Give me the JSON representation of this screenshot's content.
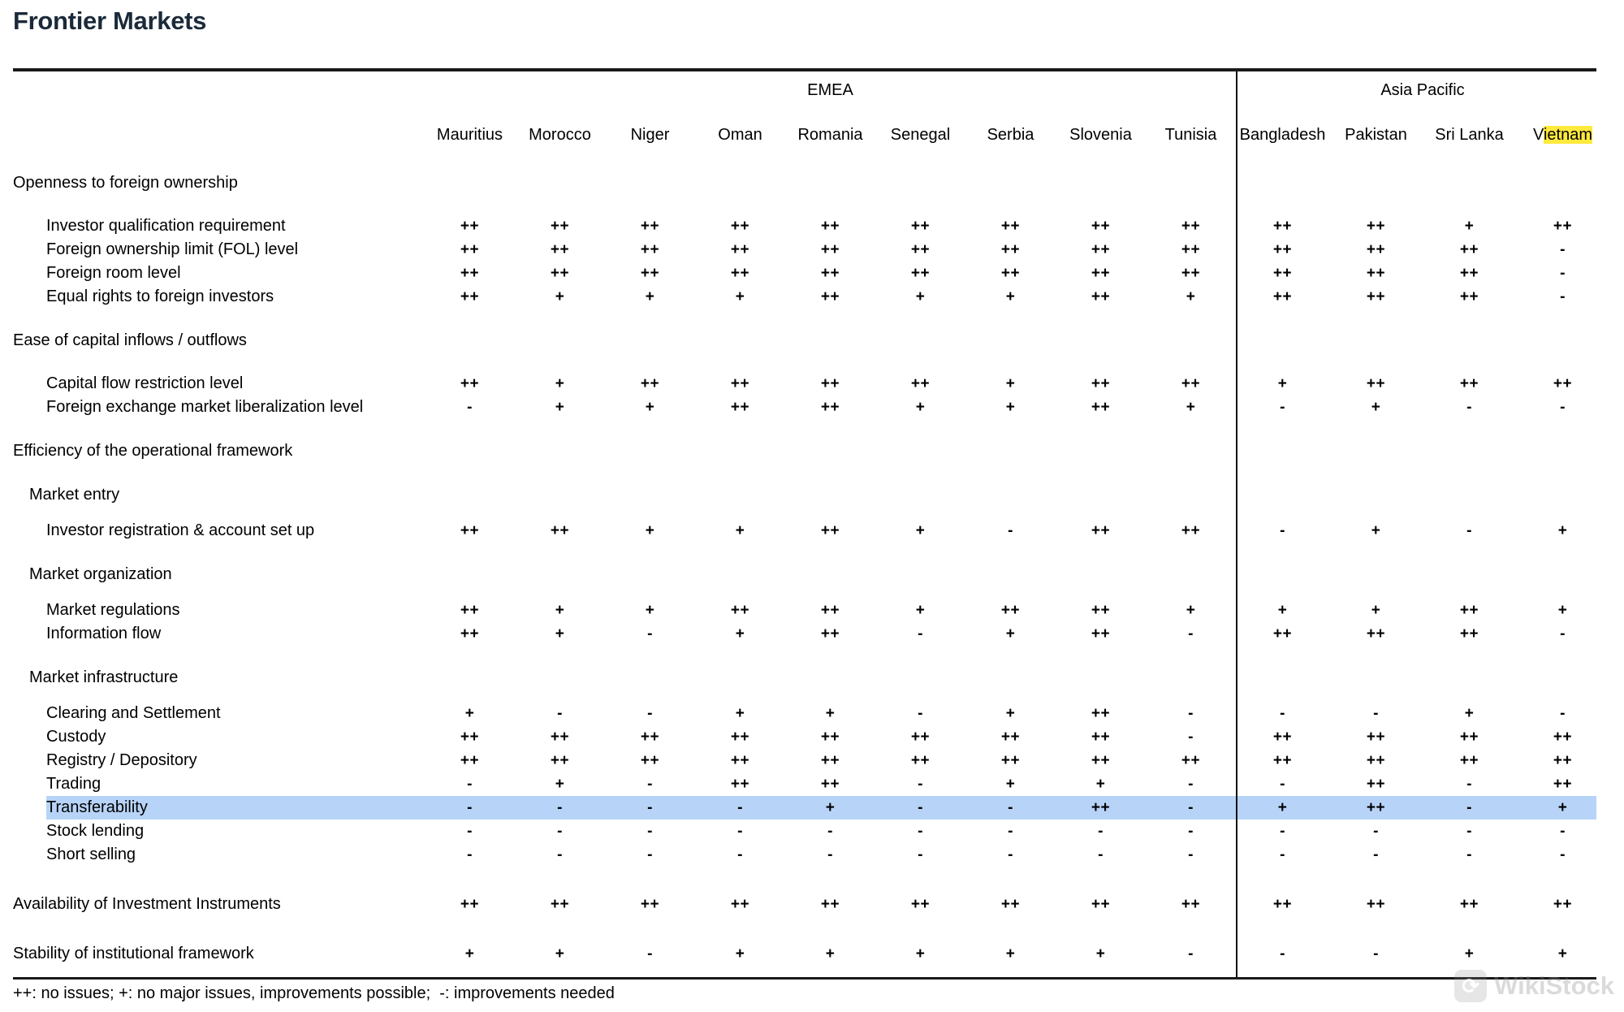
{
  "title": "Frontier Markets",
  "legend": "++: no issues; +: no major issues, improvements possible;  -: improvements needed",
  "watermark": "WikiStock",
  "colors": {
    "title": "#1b2a3a",
    "row_highlight_blue": "#b7d3f8",
    "country_highlight_yellow": "#ffe93c",
    "table_line": "#1a1a1a",
    "watermark_gray": "#8c8c8c"
  },
  "groups": [
    {
      "name": "EMEA",
      "countries": [
        "Mauritius",
        "Morocco",
        "Niger",
        "Oman",
        "Romania",
        "Senegal",
        "Serbia",
        "Slovenia",
        "Tunisia"
      ]
    },
    {
      "name": "Asia Pacific",
      "countries": [
        "Bangladesh",
        "Pakistan",
        "Sri Lanka",
        "Vietnam"
      ]
    }
  ],
  "highlighted_country": "Vietnam",
  "rows": [
    {
      "type": "section",
      "label": "Openness to foreign ownership"
    },
    {
      "type": "data",
      "label": "Investor qualification requirement",
      "values": [
        "++",
        "++",
        "++",
        "++",
        "++",
        "++",
        "++",
        "++",
        "++",
        "++",
        "++",
        "+",
        "++"
      ]
    },
    {
      "type": "data",
      "label": "Foreign ownership limit (FOL) level",
      "values": [
        "++",
        "++",
        "++",
        "++",
        "++",
        "++",
        "++",
        "++",
        "++",
        "++",
        "++",
        "++",
        "-"
      ]
    },
    {
      "type": "data",
      "label": "Foreign room level",
      "values": [
        "++",
        "++",
        "++",
        "++",
        "++",
        "++",
        "++",
        "++",
        "++",
        "++",
        "++",
        "++",
        "-"
      ]
    },
    {
      "type": "data",
      "label": "Equal rights to foreign investors",
      "values": [
        "++",
        "+",
        "+",
        "+",
        "++",
        "+",
        "+",
        "++",
        "+",
        "++",
        "++",
        "++",
        "-"
      ]
    },
    {
      "type": "section",
      "label": "Ease of capital inflows / outflows"
    },
    {
      "type": "data",
      "label": "Capital flow restriction level",
      "values": [
        "++",
        "+",
        "++",
        "++",
        "++",
        "++",
        "+",
        "++",
        "++",
        "+",
        "++",
        "++",
        "++"
      ]
    },
    {
      "type": "data",
      "label": "Foreign exchange market liberalization level",
      "values": [
        "-",
        "+",
        "+",
        "++",
        "++",
        "+",
        "+",
        "++",
        "+",
        "-",
        "+",
        "-",
        "-"
      ]
    },
    {
      "type": "section",
      "label": "Efficiency of the operational framework"
    },
    {
      "type": "subsection",
      "label": "Market entry"
    },
    {
      "type": "data",
      "label": "Investor registration & account set up",
      "values": [
        "++",
        "++",
        "+",
        "+",
        "++",
        "+",
        "-",
        "++",
        "++",
        "-",
        "+",
        "-",
        "+"
      ]
    },
    {
      "type": "subsection",
      "label": "Market organization"
    },
    {
      "type": "data",
      "label": "Market regulations",
      "values": [
        "++",
        "+",
        "+",
        "++",
        "++",
        "+",
        "++",
        "++",
        "+",
        "+",
        "+",
        "++",
        "+"
      ]
    },
    {
      "type": "data",
      "label": "Information flow",
      "values": [
        "++",
        "+",
        "-",
        "+",
        "++",
        "-",
        "+",
        "++",
        "-",
        "++",
        "++",
        "++",
        "-"
      ]
    },
    {
      "type": "subsection",
      "label": "Market infrastructure"
    },
    {
      "type": "data",
      "label": "Clearing and Settlement",
      "values": [
        "+",
        "-",
        "-",
        "+",
        "+",
        "-",
        "+",
        "++",
        "-",
        "-",
        "-",
        "+",
        "-"
      ]
    },
    {
      "type": "data",
      "label": "Custody",
      "values": [
        "++",
        "++",
        "++",
        "++",
        "++",
        "++",
        "++",
        "++",
        "-",
        "++",
        "++",
        "++",
        "++"
      ]
    },
    {
      "type": "data",
      "label": "Registry / Depository",
      "values": [
        "++",
        "++",
        "++",
        "++",
        "++",
        "++",
        "++",
        "++",
        "++",
        "++",
        "++",
        "++",
        "++"
      ]
    },
    {
      "type": "data",
      "label": "Trading",
      "values": [
        "-",
        "+",
        "-",
        "++",
        "++",
        "-",
        "+",
        "+",
        "-",
        "-",
        "++",
        "-",
        "++"
      ]
    },
    {
      "type": "data",
      "label": "Transferability",
      "highlight": true,
      "values": [
        "-",
        "-",
        "-",
        "-",
        "+",
        "-",
        "-",
        "++",
        "-",
        "+",
        "++",
        "-",
        "+"
      ]
    },
    {
      "type": "data",
      "label": "Stock lending",
      "values": [
        "-",
        "-",
        "-",
        "-",
        "-",
        "-",
        "-",
        "-",
        "-",
        "-",
        "-",
        "-",
        "-"
      ]
    },
    {
      "type": "data",
      "label": "Short selling",
      "values": [
        "-",
        "-",
        "-",
        "-",
        "-",
        "-",
        "-",
        "-",
        "-",
        "-",
        "-",
        "-",
        "-"
      ]
    },
    {
      "type": "sectiondata",
      "label": "Availability of Investment Instruments",
      "values": [
        "++",
        "++",
        "++",
        "++",
        "++",
        "++",
        "++",
        "++",
        "++",
        "++",
        "++",
        "++",
        "++"
      ]
    },
    {
      "type": "sectiondata",
      "label": "Stability of institutional framework",
      "last": true,
      "values": [
        "+",
        "+",
        "-",
        "+",
        "+",
        "+",
        "+",
        "+",
        "-",
        "-",
        "-",
        "+",
        "+"
      ]
    }
  ]
}
